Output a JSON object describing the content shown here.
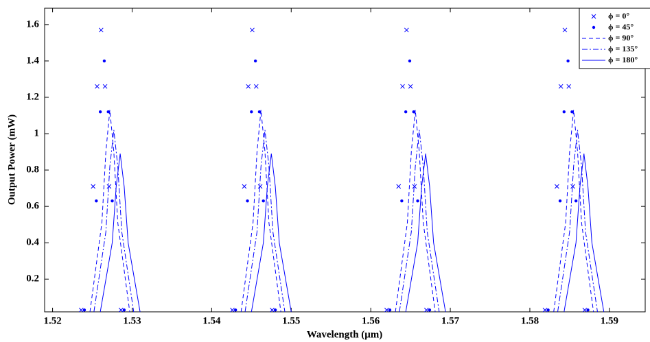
{
  "chart_data": {
    "type": "line",
    "xlabel": "Wavelength (μm)",
    "ylabel": "Output Power (mW)",
    "xlim": [
      1.519,
      1.5945
    ],
    "ylim": [
      0.02,
      1.69
    ],
    "xticks": [
      1.52,
      1.53,
      1.54,
      1.55,
      1.56,
      1.57,
      1.58,
      1.59
    ],
    "yticks": [
      0.2,
      0.4,
      0.6,
      0.8,
      1,
      1.2,
      1.4,
      1.6
    ],
    "grid": false,
    "legend": "top-right",
    "series": [
      {
        "name": "ϕ = 0°",
        "color": "#0000ff",
        "style": "x-marker",
        "x": [
          1.5236,
          1.5251,
          1.5256,
          1.5261,
          1.5266,
          1.5271,
          1.5286,
          null,
          1.5426,
          1.5441,
          1.5446,
          1.5451,
          1.5456,
          1.5461,
          1.5476,
          null,
          1.562,
          1.5635,
          1.564,
          1.5645,
          1.565,
          1.5655,
          1.567,
          null,
          1.5819,
          1.5834,
          1.5839,
          1.5844,
          1.5849,
          1.5854,
          1.5869
        ],
        "values": [
          0.03,
          0.71,
          1.26,
          1.57,
          1.26,
          0.71,
          0.03,
          null,
          0.03,
          0.71,
          1.26,
          1.57,
          1.26,
          0.71,
          0.03,
          null,
          0.03,
          0.71,
          1.26,
          1.57,
          1.26,
          0.71,
          0.03,
          null,
          0.03,
          0.71,
          1.26,
          1.57,
          1.26,
          0.71,
          0.03
        ]
      },
      {
        "name": "ϕ = 45°",
        "color": "#0000ff",
        "style": "dot-marker",
        "x": [
          1.524,
          1.5255,
          1.526,
          1.5265,
          1.527,
          1.5275,
          1.529,
          null,
          1.543,
          1.5445,
          1.545,
          1.5455,
          1.546,
          1.5465,
          1.548,
          null,
          1.5624,
          1.5639,
          1.5644,
          1.5649,
          1.5654,
          1.5659,
          1.5674,
          null,
          1.5823,
          1.5838,
          1.5843,
          1.5848,
          1.5853,
          1.5858,
          1.5873
        ],
        "values": [
          0.03,
          0.63,
          1.12,
          1.4,
          1.12,
          0.63,
          0.03,
          null,
          0.03,
          0.63,
          1.12,
          1.4,
          1.12,
          0.63,
          0.03,
          null,
          0.03,
          0.63,
          1.12,
          1.4,
          1.12,
          0.63,
          0.03,
          null,
          0.03,
          0.63,
          1.12,
          1.4,
          1.12,
          0.63,
          0.03
        ]
      },
      {
        "name": "ϕ = 90°",
        "color": "#0000ff",
        "style": "dashed",
        "x": [
          1.5247,
          1.5262,
          1.5267,
          1.5272,
          1.5277,
          1.5282,
          1.5297,
          null,
          1.5437,
          1.5452,
          1.5457,
          1.5462,
          1.5467,
          1.5472,
          1.5487,
          null,
          1.5631,
          1.5646,
          1.5651,
          1.5656,
          1.5661,
          1.5666,
          1.5681,
          null,
          1.583,
          1.5845,
          1.585,
          1.5855,
          1.586,
          1.5865,
          1.588
        ],
        "values": [
          0.02,
          0.51,
          0.9,
          1.13,
          0.9,
          0.51,
          0.02,
          null,
          0.02,
          0.51,
          0.9,
          1.13,
          0.9,
          0.51,
          0.02,
          null,
          0.02,
          0.51,
          0.9,
          1.13,
          0.9,
          0.51,
          0.02,
          null,
          0.02,
          0.51,
          0.9,
          1.13,
          0.9,
          0.51,
          0.02
        ]
      },
      {
        "name": "ϕ = 135°",
        "color": "#0000ff",
        "style": "dashdot",
        "x": [
          1.5252,
          1.5267,
          1.5272,
          1.5277,
          1.5282,
          1.5287,
          1.5302,
          null,
          1.5442,
          1.5457,
          1.5462,
          1.5467,
          1.5472,
          1.5477,
          1.5492,
          null,
          1.5636,
          1.5651,
          1.5656,
          1.5661,
          1.5666,
          1.5671,
          1.5686,
          null,
          1.5835,
          1.585,
          1.5855,
          1.586,
          1.5865,
          1.587,
          1.5885
        ],
        "values": [
          0.02,
          0.46,
          0.82,
          1.02,
          0.82,
          0.46,
          0.02,
          null,
          0.02,
          0.46,
          0.82,
          1.02,
          0.82,
          0.46,
          0.02,
          null,
          0.02,
          0.46,
          0.82,
          1.02,
          0.82,
          0.46,
          0.02,
          null,
          0.02,
          0.46,
          0.82,
          1.02,
          0.82,
          0.46,
          0.02
        ]
      },
      {
        "name": "ϕ = 180°",
        "color": "#0000ff",
        "style": "solid",
        "x": [
          1.526,
          1.5275,
          1.528,
          1.5285,
          1.529,
          1.5295,
          1.531,
          null,
          1.545,
          1.5465,
          1.547,
          1.5475,
          1.548,
          1.5485,
          1.55,
          null,
          1.5644,
          1.5659,
          1.5664,
          1.5669,
          1.5674,
          1.5679,
          1.5694,
          null,
          1.5843,
          1.5858,
          1.5863,
          1.5868,
          1.5873,
          1.5878,
          1.5893
        ],
        "values": [
          0.02,
          0.4,
          0.71,
          0.89,
          0.71,
          0.4,
          0.02,
          null,
          0.02,
          0.4,
          0.71,
          0.89,
          0.71,
          0.4,
          0.02,
          null,
          0.02,
          0.4,
          0.71,
          0.89,
          0.71,
          0.4,
          0.02,
          null,
          0.02,
          0.4,
          0.71,
          0.89,
          0.71,
          0.4,
          0.02
        ]
      }
    ]
  }
}
